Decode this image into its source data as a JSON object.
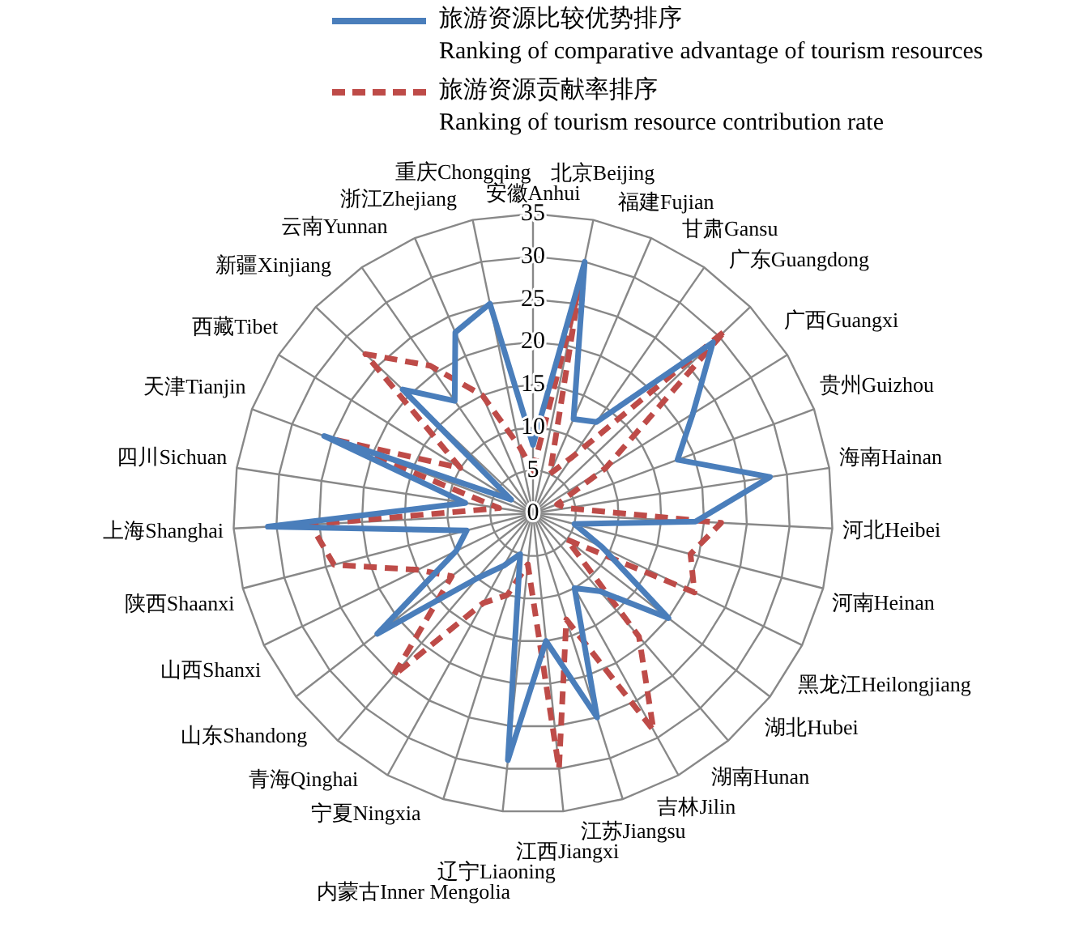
{
  "chart_data": {
    "type": "radar",
    "categories": [
      "安徽Anhui",
      "北京Beijing",
      "福建Fujian",
      "甘肃Gansu",
      "广东Guangdong",
      "广西Guangxi",
      "贵州Guizhou",
      "海南Hainan",
      "河北Heibei",
      "河南Heinan",
      "黑龙江Heilongjiang",
      "湖北Hubei",
      "湖南Hunan",
      "吉林Jilin",
      "江苏Jiangsu",
      "江西Jiangxi",
      "辽宁Liaoning",
      "内蒙古Inner Mengolia",
      "宁夏Ningxia",
      "青海Qinghai",
      "山东Shandong",
      "山西Shanxi",
      "陕西Shaanxi",
      "上海Shanghai",
      "四川Sichuan",
      "天津Tianjin",
      "西藏Tibet",
      "新疆Xinjiang",
      "云南Yunnan",
      "浙江Zhejiang",
      "重庆Chongqing"
    ],
    "series": [
      {
        "name": "旅游资源比较优势排序\nRanking of comparative advantage of tourism resources",
        "color": "#4a7ebb",
        "line_style": "solid",
        "values": [
          8,
          30,
          12,
          13,
          29,
          22,
          18,
          28,
          19,
          5,
          9,
          20,
          12,
          10,
          25,
          15,
          29,
          5,
          7,
          10,
          23,
          10,
          8,
          31,
          8,
          26,
          3,
          21,
          16,
          23,
          25
        ]
      },
      {
        "name": "旅游资源贡献率排序\nRanking of tourism resource contribution rate",
        "color": "#be4b48",
        "line_style": "dashed",
        "values": [
          5,
          27,
          5,
          8,
          31,
          10,
          3,
          4,
          22,
          19,
          21,
          5,
          19,
          29,
          13,
          30,
          6,
          10,
          12,
          25,
          12,
          15,
          24,
          26,
          4,
          25,
          10,
          27,
          21,
          15,
          8
        ]
      }
    ],
    "ylim": [
      0,
      35
    ],
    "yticks": [
      0,
      5,
      10,
      15,
      20,
      25,
      30,
      35
    ],
    "grid": true,
    "legend": "top",
    "marker": "none"
  }
}
